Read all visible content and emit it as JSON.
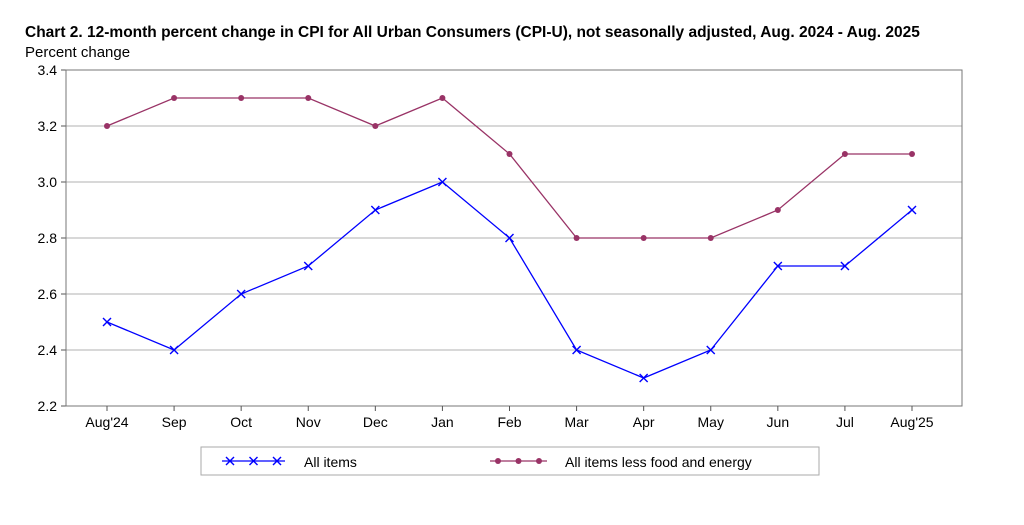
{
  "chart_data": {
    "type": "line",
    "title": "Chart 2. 12-month percent change in CPI for All Urban Consumers (CPI-U), not seasonally adjusted, Aug. 2024 - Aug. 2025",
    "xlabel": "",
    "ylabel": "Percent change",
    "ylim": [
      2.2,
      3.4
    ],
    "yticks": [
      "2.2",
      "2.4",
      "2.6",
      "2.8",
      "3.0",
      "3.2",
      "3.4"
    ],
    "grid": true,
    "legend_placement": "bottom",
    "categories": [
      "Aug'24",
      "Sep",
      "Oct",
      "Nov",
      "Dec",
      "Jan",
      "Feb",
      "Mar",
      "Apr",
      "May",
      "Jun",
      "Jul",
      "Aug'25"
    ],
    "series": [
      {
        "name": "All items",
        "color": "#0000ff",
        "marker": "x",
        "values": [
          2.5,
          2.4,
          2.6,
          2.7,
          2.9,
          3.0,
          2.8,
          2.4,
          2.3,
          2.4,
          2.7,
          2.7,
          2.9
        ]
      },
      {
        "name": "All items less food and energy",
        "color": "#993366",
        "marker": "circle",
        "values": [
          3.2,
          3.3,
          3.3,
          3.3,
          3.2,
          3.3,
          3.1,
          2.8,
          2.8,
          2.8,
          2.9,
          3.1,
          3.1
        ]
      }
    ]
  }
}
